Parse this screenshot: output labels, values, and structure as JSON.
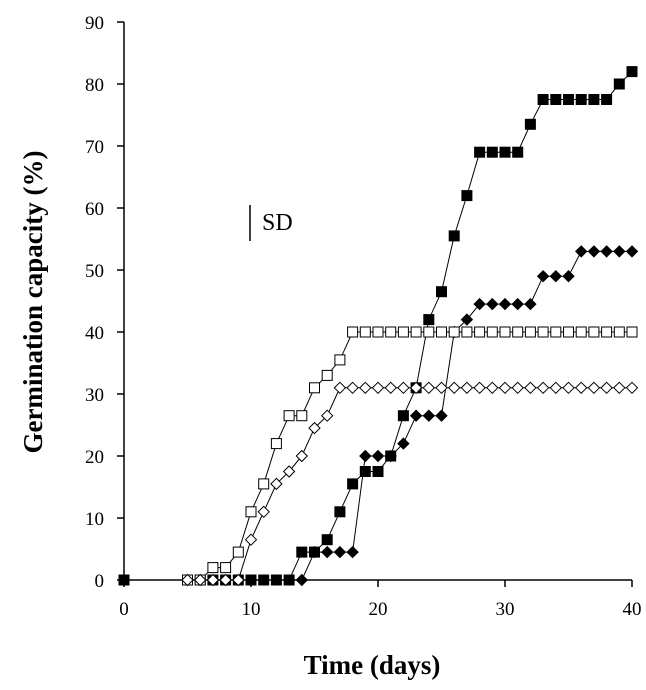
{
  "chart_data": {
    "type": "line",
    "title": "",
    "xlabel": "Time (days)",
    "ylabel": "Germination capacity (%)",
    "xlim": [
      0,
      40
    ],
    "ylim": [
      0,
      90
    ],
    "xticks": [
      0,
      10,
      20,
      30,
      40
    ],
    "yticks": [
      0,
      10,
      20,
      30,
      40,
      50,
      60,
      70,
      80,
      90
    ],
    "grid": false,
    "annotation": "SD",
    "series": [
      {
        "marker": "filled-square",
        "x": [
          0,
          5,
          6,
          7,
          8,
          9,
          10,
          11,
          12,
          13,
          14,
          15,
          16,
          17,
          18,
          19,
          20,
          21,
          22,
          23,
          24,
          25,
          26,
          27,
          28,
          29,
          30,
          31,
          32,
          33,
          34,
          35,
          36,
          37,
          38,
          39,
          40
        ],
        "y": [
          0,
          0,
          0,
          0,
          0,
          0,
          0,
          0,
          0,
          0,
          4.5,
          4.5,
          6.5,
          11,
          15.5,
          17.5,
          17.5,
          20,
          26.5,
          31,
          42,
          46.5,
          55.5,
          62,
          69,
          69,
          69,
          69,
          73.5,
          77.5,
          77.5,
          77.5,
          77.5,
          77.5,
          77.5,
          80,
          82
        ]
      },
      {
        "marker": "filled-diamond",
        "x": [
          14,
          15,
          16,
          17,
          18,
          19,
          20,
          21,
          22,
          23,
          24,
          25,
          26,
          27,
          28,
          29,
          30,
          31,
          32,
          33,
          34,
          35,
          36,
          37,
          38,
          39,
          40
        ],
        "y": [
          0,
          4.5,
          4.5,
          4.5,
          4.5,
          20,
          20,
          20,
          22,
          26.5,
          26.5,
          26.5,
          40,
          42,
          44.5,
          44.5,
          44.5,
          44.5,
          44.5,
          49,
          49,
          49,
          53,
          53,
          53,
          53,
          53
        ]
      },
      {
        "marker": "open-square",
        "x": [
          5,
          6,
          7,
          8,
          9,
          10,
          11,
          12,
          13,
          14,
          15,
          16,
          17,
          18,
          19,
          20,
          21,
          22,
          23,
          24,
          25,
          26,
          27,
          28,
          29,
          30,
          31,
          32,
          33,
          34,
          35,
          36,
          37,
          38,
          39,
          40
        ],
        "y": [
          0,
          0,
          2,
          2,
          4.5,
          11,
          15.5,
          22,
          26.5,
          26.5,
          31,
          33,
          35.5,
          40,
          40,
          40,
          40,
          40,
          40,
          40,
          40,
          40,
          40,
          40,
          40,
          40,
          40,
          40,
          40,
          40,
          40,
          40,
          40,
          40,
          40,
          40
        ]
      },
      {
        "marker": "open-diamond",
        "x": [
          5,
          6,
          7,
          8,
          9,
          10,
          11,
          12,
          13,
          14,
          15,
          16,
          17,
          18,
          19,
          20,
          21,
          22,
          23,
          24,
          25,
          26,
          27,
          28,
          29,
          30,
          31,
          32,
          33,
          34,
          35,
          36,
          37,
          38,
          39,
          40
        ],
        "y": [
          0,
          0,
          0,
          0,
          0,
          6.5,
          11,
          15.5,
          17.5,
          20,
          24.5,
          26.5,
          31,
          31,
          31,
          31,
          31,
          31,
          31,
          31,
          31,
          31,
          31,
          31,
          31,
          31,
          31,
          31,
          31,
          31,
          31,
          31,
          31,
          31,
          31,
          31
        ]
      }
    ]
  }
}
